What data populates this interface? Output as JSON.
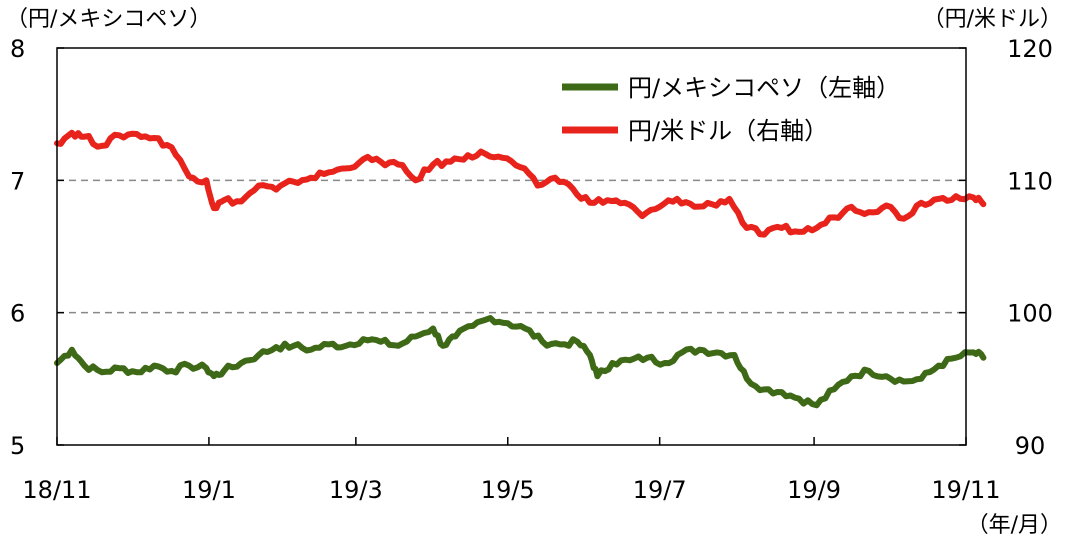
{
  "chart_data": {
    "type": "line",
    "left_axis_unit": "（円/メキシコペソ）",
    "right_axis_unit": "（円/米ドル）",
    "x_unit": "（年/月）",
    "x_tick_labels": [
      "18/11",
      "19/1",
      "19/3",
      "19/5",
      "19/7",
      "19/9",
      "19/11"
    ],
    "x_ticks": [
      "2018-11-01",
      "2019-01-01",
      "2019-03-01",
      "2019-05-01",
      "2019-07-01",
      "2019-09-01",
      "2019-11-01"
    ],
    "ylim_left": [
      5,
      8
    ],
    "ylim_right": [
      90,
      120
    ],
    "yticks_left": [
      "5",
      "6",
      "7",
      "8"
    ],
    "yticks_right": [
      "90",
      "100",
      "110",
      "120"
    ],
    "gridlines_left": [
      6,
      7
    ],
    "legend_position": "top-right",
    "series": [
      {
        "name": "円/メキシコペソ（左軸）",
        "axis": "left",
        "color": "#3e6a17",
        "points": [
          [
            "2018-11-01",
            5.62
          ],
          [
            "2018-11-07",
            5.72
          ],
          [
            "2018-11-12",
            5.6
          ],
          [
            "2018-11-19",
            5.55
          ],
          [
            "2018-11-26",
            5.58
          ],
          [
            "2018-12-03",
            5.55
          ],
          [
            "2018-12-10",
            5.6
          ],
          [
            "2018-12-17",
            5.56
          ],
          [
            "2018-12-24",
            5.6
          ],
          [
            "2018-12-31",
            5.58
          ],
          [
            "2019-01-07",
            5.56
          ],
          [
            "2019-01-03",
            5.52
          ],
          [
            "2019-01-14",
            5.62
          ],
          [
            "2019-01-21",
            5.68
          ],
          [
            "2019-01-28",
            5.74
          ],
          [
            "2019-02-04",
            5.75
          ],
          [
            "2019-02-11",
            5.72
          ],
          [
            "2019-02-18",
            5.76
          ],
          [
            "2019-02-25",
            5.75
          ],
          [
            "2019-03-04",
            5.8
          ],
          [
            "2019-03-11",
            5.78
          ],
          [
            "2019-03-18",
            5.75
          ],
          [
            "2019-03-25",
            5.82
          ],
          [
            "2019-04-01",
            5.88
          ],
          [
            "2019-04-05",
            5.75
          ],
          [
            "2019-04-10",
            5.82
          ],
          [
            "2019-04-17",
            5.9
          ],
          [
            "2019-04-24",
            5.96
          ],
          [
            "2019-05-01",
            5.92
          ],
          [
            "2019-05-08",
            5.88
          ],
          [
            "2019-05-15",
            5.78
          ],
          [
            "2019-05-22",
            5.76
          ],
          [
            "2019-05-29",
            5.78
          ],
          [
            "2019-06-03",
            5.68
          ],
          [
            "2019-06-06",
            5.52
          ],
          [
            "2019-06-12",
            5.62
          ],
          [
            "2019-06-19",
            5.64
          ],
          [
            "2019-06-26",
            5.66
          ],
          [
            "2019-07-03",
            5.62
          ],
          [
            "2019-07-10",
            5.7
          ],
          [
            "2019-07-17",
            5.72
          ],
          [
            "2019-07-24",
            5.7
          ],
          [
            "2019-07-31",
            5.68
          ],
          [
            "2019-08-05",
            5.5
          ],
          [
            "2019-08-12",
            5.42
          ],
          [
            "2019-08-19",
            5.4
          ],
          [
            "2019-08-26",
            5.35
          ],
          [
            "2019-09-02",
            5.3
          ],
          [
            "2019-09-09",
            5.42
          ],
          [
            "2019-09-16",
            5.52
          ],
          [
            "2019-09-23",
            5.56
          ],
          [
            "2019-09-30",
            5.52
          ],
          [
            "2019-10-07",
            5.48
          ],
          [
            "2019-10-14",
            5.5
          ],
          [
            "2019-10-21",
            5.6
          ],
          [
            "2019-10-28",
            5.66
          ],
          [
            "2019-11-04",
            5.7
          ],
          [
            "2019-11-08",
            5.66
          ]
        ]
      },
      {
        "name": "円/米ドル（右軸）",
        "axis": "right",
        "color": "#e8231c",
        "points": [
          [
            "2018-11-01",
            112.8
          ],
          [
            "2018-11-07",
            113.6
          ],
          [
            "2018-11-12",
            113.3
          ],
          [
            "2018-11-19",
            112.6
          ],
          [
            "2018-11-26",
            113.4
          ],
          [
            "2018-12-03",
            113.5
          ],
          [
            "2018-12-10",
            113.2
          ],
          [
            "2018-12-17",
            112.5
          ],
          [
            "2018-12-24",
            110.3
          ],
          [
            "2018-12-31",
            110.0
          ],
          [
            "2019-01-03",
            107.9
          ],
          [
            "2019-01-07",
            108.5
          ],
          [
            "2019-01-14",
            108.4
          ],
          [
            "2019-01-21",
            109.6
          ],
          [
            "2019-01-28",
            109.3
          ],
          [
            "2019-02-04",
            109.9
          ],
          [
            "2019-02-11",
            110.2
          ],
          [
            "2019-02-18",
            110.6
          ],
          [
            "2019-02-25",
            110.9
          ],
          [
            "2019-03-04",
            111.6
          ],
          [
            "2019-03-11",
            111.4
          ],
          [
            "2019-03-18",
            111.2
          ],
          [
            "2019-03-25",
            110.0
          ],
          [
            "2019-04-01",
            111.2
          ],
          [
            "2019-04-08",
            111.4
          ],
          [
            "2019-04-15",
            111.9
          ],
          [
            "2019-04-22",
            112.0
          ],
          [
            "2019-04-29",
            111.7
          ],
          [
            "2019-05-06",
            111.0
          ],
          [
            "2019-05-13",
            109.6
          ],
          [
            "2019-05-20",
            110.2
          ],
          [
            "2019-05-27",
            109.4
          ],
          [
            "2019-06-03",
            108.3
          ],
          [
            "2019-06-10",
            108.5
          ],
          [
            "2019-06-17",
            108.3
          ],
          [
            "2019-06-24",
            107.3
          ],
          [
            "2019-07-01",
            108.0
          ],
          [
            "2019-07-08",
            108.6
          ],
          [
            "2019-07-15",
            108.0
          ],
          [
            "2019-07-22",
            108.2
          ],
          [
            "2019-07-29",
            108.6
          ],
          [
            "2019-08-05",
            106.4
          ],
          [
            "2019-08-12",
            105.9
          ],
          [
            "2019-08-19",
            106.4
          ],
          [
            "2019-08-26",
            106.1
          ],
          [
            "2019-09-02",
            106.4
          ],
          [
            "2019-09-09",
            107.2
          ],
          [
            "2019-09-16",
            108.0
          ],
          [
            "2019-09-23",
            107.6
          ],
          [
            "2019-09-30",
            108.1
          ],
          [
            "2019-10-07",
            107.1
          ],
          [
            "2019-10-14",
            108.3
          ],
          [
            "2019-10-21",
            108.6
          ],
          [
            "2019-10-28",
            108.8
          ],
          [
            "2019-11-04",
            108.7
          ],
          [
            "2019-11-08",
            108.2
          ]
        ]
      }
    ]
  }
}
